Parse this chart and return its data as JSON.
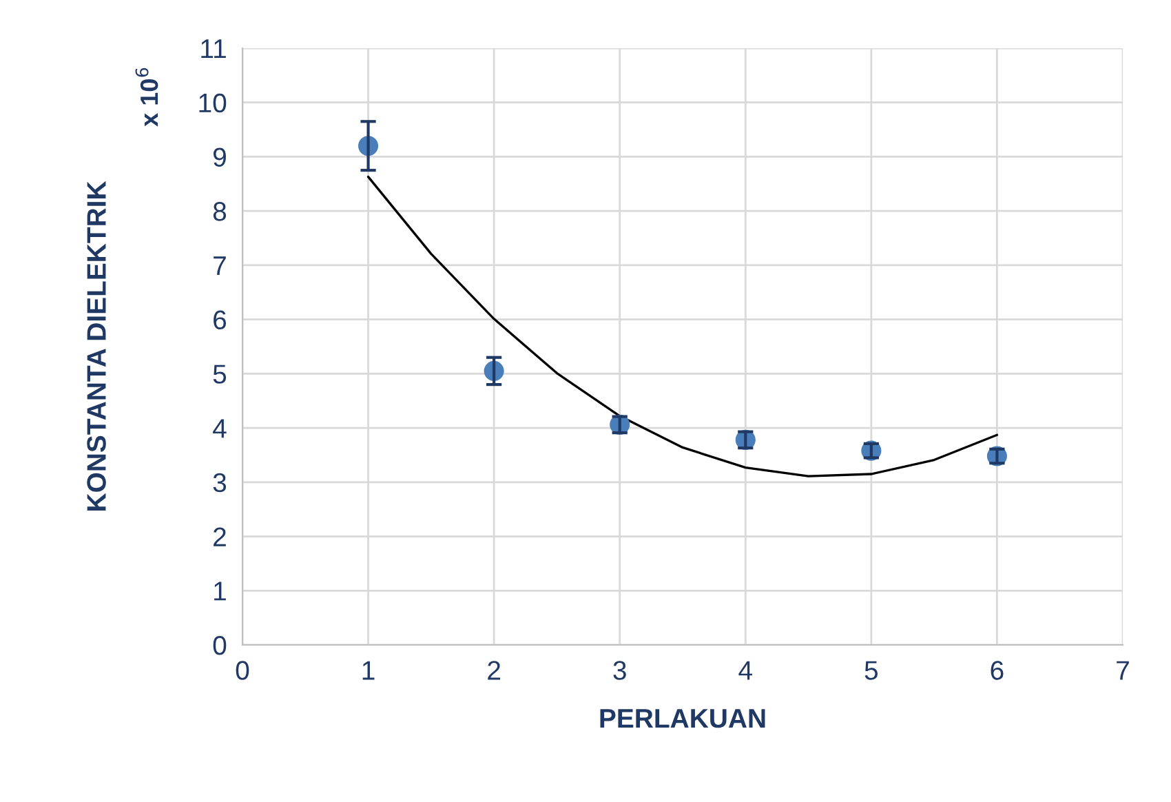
{
  "chart_data": {
    "type": "scatter",
    "xlabel": "PERLAKUAN",
    "ylabel": "KONSTANTA DIELEKTRIK",
    "annotations": [
      "x 10$^{6}$"
    ],
    "xlim": [
      0,
      7
    ],
    "xticks": [
      0,
      1,
      2,
      3,
      4,
      5,
      6,
      7
    ],
    "ylim": [
      0,
      11
    ],
    "yticks": [
      0,
      1,
      2,
      3,
      4,
      5,
      6,
      7,
      8,
      9,
      10,
      11
    ],
    "grid": true,
    "legend": false,
    "series": [
      {
        "marker": "circle",
        "color": "#4a7ebb",
        "x": [
          1,
          2,
          3,
          4,
          5,
          6
        ],
        "values": [
          9.2,
          5.05,
          4.06,
          3.78,
          3.58,
          3.48
        ],
        "errors": [
          0.45,
          0.25,
          0.15,
          0.15,
          0.13,
          0.13
        ]
      },
      {
        "type": "line",
        "marker": "none",
        "color": "#000000",
        "line_style": "solid",
        "x": [
          1,
          1.5,
          2,
          2.5,
          3,
          3.5,
          4,
          4.5,
          5,
          5.5,
          6
        ],
        "values": [
          8.63,
          7.21,
          6.01,
          5.01,
          4.22,
          3.64,
          3.27,
          3.11,
          3.15,
          3.41,
          3.87
        ]
      }
    ]
  }
}
